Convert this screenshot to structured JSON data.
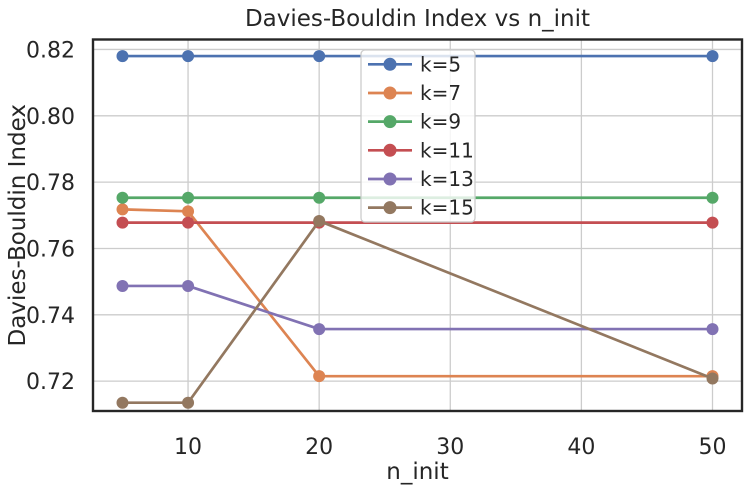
{
  "figure": {
    "title": "Davies-Bouldin Index vs n_init",
    "xlabel": "n_init",
    "ylabel": "Davies-Bouldin Index"
  },
  "colors": {
    "background": "#ffffff",
    "spine": "#262626",
    "grid": "#cccccc",
    "text": "#262626"
  },
  "chart_data": {
    "type": "line",
    "title": "Davies-Bouldin Index vs n_init",
    "xlabel": "n_init",
    "ylabel": "Davies-Bouldin Index",
    "x": [
      5,
      10,
      20,
      50
    ],
    "series": [
      {
        "name": "k=5",
        "color": "#4C72B0",
        "values": [
          0.818,
          0.818,
          0.818,
          0.818
        ]
      },
      {
        "name": "k=7",
        "color": "#DD8452",
        "values": [
          0.7718,
          0.7712,
          0.7215,
          0.7215
        ]
      },
      {
        "name": "k=9",
        "color": "#55A868",
        "values": [
          0.7753,
          0.7753,
          0.7753,
          0.7753
        ]
      },
      {
        "name": "k=11",
        "color": "#C44E52",
        "values": [
          0.7678,
          0.7678,
          0.7678,
          0.7678
        ]
      },
      {
        "name": "k=13",
        "color": "#8172B3",
        "values": [
          0.7487,
          0.7487,
          0.7357,
          0.7357
        ]
      },
      {
        "name": "k=15",
        "color": "#937860",
        "values": [
          0.7135,
          0.7135,
          0.7683,
          0.7208
        ]
      }
    ],
    "xlim": [
      2.75,
      52.25
    ],
    "ylim": [
      0.711,
      0.823
    ],
    "xticks": [
      10,
      20,
      30,
      40,
      50
    ],
    "xtick_labels": [
      "10",
      "20",
      "30",
      "40",
      "50"
    ],
    "yticks": [
      0.72,
      0.74,
      0.76,
      0.78,
      0.8,
      0.82
    ],
    "ytick_labels": [
      "0.72",
      "0.74",
      "0.76",
      "0.78",
      "0.80",
      "0.82"
    ],
    "grid": true,
    "marker": "circle",
    "legend": {
      "position": "upper center-right",
      "entries": [
        "k=5",
        "k=7",
        "k=9",
        "k=11",
        "k=13",
        "k=15"
      ]
    }
  }
}
